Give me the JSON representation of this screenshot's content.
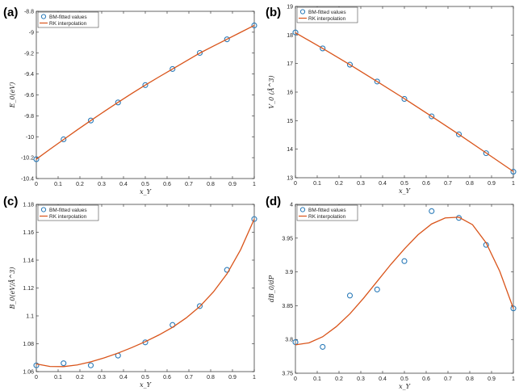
{
  "colors": {
    "marker": "#2a7ab8",
    "curve": "#d9541a",
    "axis": "#262626"
  },
  "chart_data": [
    {
      "type": "scatter",
      "panel_label": "(a)",
      "xlabel": "x_Y",
      "ylabel": "E_0(eV)",
      "xlim": [
        0,
        1
      ],
      "ylim": [
        -10.4,
        -8.8
      ],
      "xticks": [
        0,
        0.1,
        0.2,
        0.3,
        0.4,
        0.5,
        0.6,
        0.7,
        0.8,
        0.9,
        1
      ],
      "xtick_labels": [
        "0",
        "0.1",
        "0.2",
        "0.3",
        "0.4",
        "0.5",
        "0.6",
        "0.7",
        "0.8",
        "0.9",
        "1"
      ],
      "yticks": [
        -10.4,
        -10.2,
        -10,
        -9.8,
        -9.6,
        -9.4,
        -9.2,
        -9,
        -8.8
      ],
      "ytick_labels": [
        "-10.4",
        "-10.2",
        "-10",
        "-9.8",
        "-9.6",
        "-9.4",
        "-9.2",
        "-9",
        "-8.8"
      ],
      "legend": {
        "placement": "top-left",
        "entries": [
          "BM-fitted values",
          "RK interpolation"
        ]
      },
      "series": [
        {
          "name": "BM-fitted values",
          "kind": "markers",
          "x": [
            0,
            0.125,
            0.25,
            0.375,
            0.5,
            0.625,
            0.75,
            0.875,
            1
          ],
          "y": [
            -10.215,
            -10.025,
            -9.845,
            -9.672,
            -9.506,
            -9.352,
            -9.198,
            -9.068,
            -8.935
          ]
        },
        {
          "name": "RK interpolation",
          "kind": "line",
          "x": [
            0,
            0.0625,
            0.125,
            0.1875,
            0.25,
            0.3125,
            0.375,
            0.4375,
            0.5,
            0.5625,
            0.625,
            0.6875,
            0.75,
            0.8125,
            0.875,
            0.9375,
            1
          ],
          "y": [
            -10.215,
            -10.12,
            -10.027,
            -9.935,
            -9.845,
            -9.757,
            -9.671,
            -9.587,
            -9.506,
            -9.428,
            -9.352,
            -9.276,
            -9.2,
            -9.133,
            -9.067,
            -9.001,
            -8.935
          ]
        }
      ]
    },
    {
      "type": "scatter",
      "panel_label": "(b)",
      "xlabel": "x_Y",
      "ylabel": "V_0 (Å^3)",
      "xlim": [
        0,
        1
      ],
      "ylim": [
        13,
        19
      ],
      "xticks": [
        0,
        0.1,
        0.2,
        0.3,
        0.4,
        0.5,
        0.6,
        0.7,
        0.8,
        0.9,
        1
      ],
      "xtick_labels": [
        "0",
        "0.1",
        "0.2",
        "0.3",
        "0.4",
        "0.5",
        "0.6",
        "0.7",
        "0.8",
        "0.9",
        "1"
      ],
      "yticks": [
        13,
        14,
        15,
        16,
        17,
        18,
        19
      ],
      "ytick_labels": [
        "13",
        "14",
        "15",
        "16",
        "17",
        "18",
        "19"
      ],
      "legend": {
        "placement": "top-left",
        "entries": [
          "BM-fitted values",
          "RK interpolation"
        ]
      },
      "series": [
        {
          "name": "BM-fitted values",
          "kind": "markers",
          "x": [
            0,
            0.125,
            0.25,
            0.375,
            0.5,
            0.625,
            0.75,
            0.875,
            1
          ],
          "y": [
            18.09,
            17.53,
            16.96,
            16.37,
            15.76,
            15.15,
            14.52,
            13.86,
            13.21
          ]
        },
        {
          "name": "RK interpolation",
          "kind": "line",
          "x": [
            0,
            0.125,
            0.25,
            0.375,
            0.5,
            0.625,
            0.75,
            0.875,
            1
          ],
          "y": [
            18.08,
            17.53,
            16.96,
            16.37,
            15.77,
            15.15,
            14.52,
            13.87,
            13.22
          ]
        }
      ]
    },
    {
      "type": "scatter",
      "panel_label": "(c)",
      "xlabel": "x_Y",
      "ylabel": "B_0(eV/Å^3)",
      "xlim": [
        0,
        1
      ],
      "ylim": [
        1.06,
        1.18
      ],
      "xticks": [
        0,
        0.1,
        0.2,
        0.3,
        0.4,
        0.5,
        0.6,
        0.7,
        0.8,
        0.9,
        1
      ],
      "xtick_labels": [
        "0",
        "0.1",
        "0.2",
        "0.3",
        "0.4",
        "0.5",
        "0.6",
        "0.7",
        "0.8",
        "0.9",
        "1"
      ],
      "yticks": [
        1.06,
        1.08,
        1.1,
        1.12,
        1.14,
        1.16,
        1.18
      ],
      "ytick_labels": [
        "1.06",
        "1.08",
        "1.1",
        "1.12",
        "1.14",
        "1.16",
        "1.18"
      ],
      "legend": {
        "placement": "top-left",
        "entries": [
          "BM-fitted values",
          "RK interpolation"
        ]
      },
      "series": [
        {
          "name": "BM-fitted values",
          "kind": "markers",
          "x": [
            0,
            0.125,
            0.25,
            0.375,
            0.5,
            0.625,
            0.75,
            0.875,
            1
          ],
          "y": [
            1.0645,
            1.066,
            1.0645,
            1.0715,
            1.081,
            1.0935,
            1.107,
            1.133,
            1.1695
          ]
        },
        {
          "name": "RK interpolation",
          "kind": "line",
          "x": [
            0,
            0.0625,
            0.125,
            0.1875,
            0.25,
            0.3125,
            0.375,
            0.4375,
            0.5,
            0.5625,
            0.625,
            0.6875,
            0.75,
            0.8125,
            0.875,
            0.9375,
            1
          ],
          "y": [
            1.0655,
            1.0637,
            1.0636,
            1.0648,
            1.067,
            1.0699,
            1.0733,
            1.0772,
            1.0815,
            1.0863,
            1.0918,
            1.0985,
            1.1067,
            1.1172,
            1.1302,
            1.1475,
            1.1695
          ]
        }
      ]
    },
    {
      "type": "scatter",
      "panel_label": "(d)",
      "xlabel": "x_Y",
      "ylabel": "dB_0/dP",
      "xlim": [
        0,
        1
      ],
      "ylim": [
        3.75,
        4
      ],
      "xticks": [
        0,
        0.1,
        0.2,
        0.3,
        0.4,
        0.5,
        0.6,
        0.7,
        0.8,
        0.9,
        1
      ],
      "xtick_labels": [
        "0",
        "0.1",
        "0.2",
        "0.3",
        "0.4",
        "0.5",
        "0.6",
        "0.7",
        "0.8",
        "0.9",
        "1"
      ],
      "yticks": [
        3.75,
        3.8,
        3.85,
        3.9,
        3.95,
        4
      ],
      "ytick_labels": [
        "3.75",
        "3.8",
        "3.85",
        "3.9",
        "3.95",
        "4"
      ],
      "legend": {
        "placement": "top-left",
        "entries": [
          "BM-fitted values",
          "RK interpolation"
        ]
      },
      "series": [
        {
          "name": "BM-fitted values",
          "kind": "markers",
          "x": [
            0,
            0.125,
            0.25,
            0.375,
            0.5,
            0.625,
            0.75,
            0.875,
            1
          ],
          "y": [
            3.796,
            3.789,
            3.865,
            3.874,
            3.916,
            3.99,
            3.98,
            3.94,
            3.846
          ]
        },
        {
          "name": "RK interpolation",
          "kind": "line",
          "x": [
            0,
            0.0625,
            0.125,
            0.1875,
            0.25,
            0.3125,
            0.375,
            0.4375,
            0.5,
            0.5625,
            0.625,
            0.6875,
            0.75,
            0.8125,
            0.875,
            0.9375,
            1
          ],
          "y": [
            3.792,
            3.795,
            3.804,
            3.819,
            3.838,
            3.861,
            3.886,
            3.911,
            3.934,
            3.955,
            3.971,
            3.98,
            3.981,
            3.97,
            3.943,
            3.901,
            3.846
          ]
        }
      ]
    }
  ]
}
